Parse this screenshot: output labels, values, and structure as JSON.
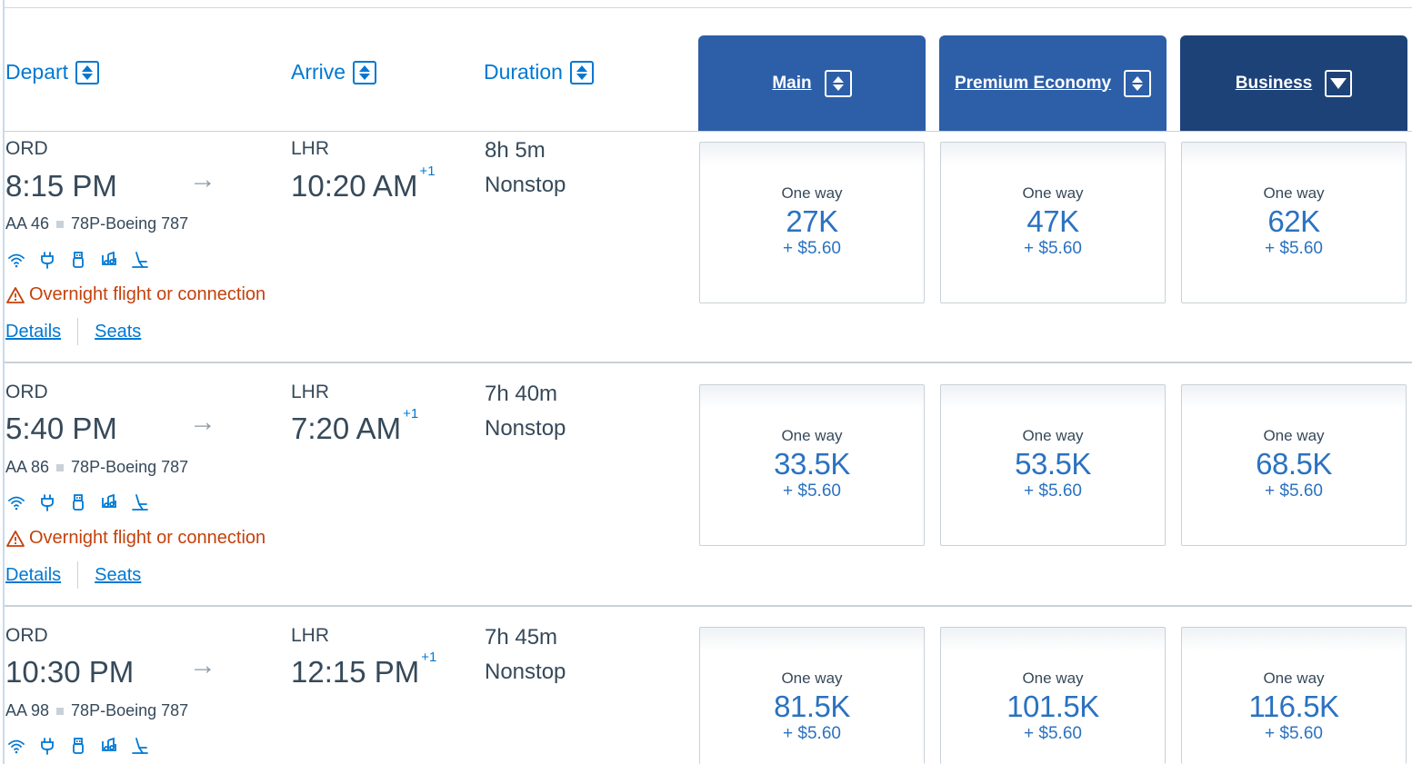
{
  "headers": {
    "depart": "Depart",
    "arrive": "Arrive",
    "duration": "Duration"
  },
  "cabins": [
    {
      "label": "Main",
      "sort": "up-down"
    },
    {
      "label": "Premium Economy",
      "sort": "up-down"
    },
    {
      "label": "Business",
      "sort": "down"
    }
  ],
  "flights": [
    {
      "origin": "ORD",
      "depart_time": "8:15 PM",
      "destination": "LHR",
      "arrive_time": "10:20 AM",
      "day_offset": "+1",
      "flight_number": "AA 46",
      "aircraft": "78P-Boeing 787",
      "duration": "8h 5m",
      "stops": "Nonstop",
      "amenities": [
        "wifi-icon",
        "power-outlet-icon",
        "usb-icon",
        "entertainment-icon",
        "lie-flat-seat-icon"
      ],
      "warning": "Overnight flight or connection",
      "details_link": "Details",
      "seats_link": "Seats",
      "fares": [
        {
          "label": "One way",
          "miles": "27K",
          "fee": "+ $5.60"
        },
        {
          "label": "One way",
          "miles": "47K",
          "fee": "+ $5.60"
        },
        {
          "label": "One way",
          "miles": "62K",
          "fee": "+ $5.60"
        }
      ]
    },
    {
      "origin": "ORD",
      "depart_time": "5:40 PM",
      "destination": "LHR",
      "arrive_time": "7:20 AM",
      "day_offset": "+1",
      "flight_number": "AA 86",
      "aircraft": "78P-Boeing 787",
      "duration": "7h 40m",
      "stops": "Nonstop",
      "amenities": [
        "wifi-icon",
        "power-outlet-icon",
        "usb-icon",
        "entertainment-icon",
        "lie-flat-seat-icon"
      ],
      "warning": "Overnight flight or connection",
      "details_link": "Details",
      "seats_link": "Seats",
      "fares": [
        {
          "label": "One way",
          "miles": "33.5K",
          "fee": "+ $5.60"
        },
        {
          "label": "One way",
          "miles": "53.5K",
          "fee": "+ $5.60"
        },
        {
          "label": "One way",
          "miles": "68.5K",
          "fee": "+ $5.60"
        }
      ]
    },
    {
      "origin": "ORD",
      "depart_time": "10:30 PM",
      "destination": "LHR",
      "arrive_time": "12:15 PM",
      "day_offset": "+1",
      "flight_number": "AA 98",
      "aircraft": "78P-Boeing 787",
      "duration": "7h 45m",
      "stops": "Nonstop",
      "amenities": [
        "wifi-icon",
        "power-outlet-icon",
        "usb-icon",
        "entertainment-icon",
        "lie-flat-seat-icon"
      ],
      "fares": [
        {
          "label": "One way",
          "miles": "81.5K",
          "fee": "+ $5.60"
        },
        {
          "label": "One way",
          "miles": "101.5K",
          "fee": "+ $5.60"
        },
        {
          "label": "One way",
          "miles": "116.5K",
          "fee": "+ $5.60"
        }
      ]
    }
  ],
  "colors": {
    "link": "#0078d2",
    "cabin_main": "#2d5fa8",
    "cabin_business": "#1c4278",
    "warning": "#c4410c",
    "fare_text": "#2b72c0"
  }
}
